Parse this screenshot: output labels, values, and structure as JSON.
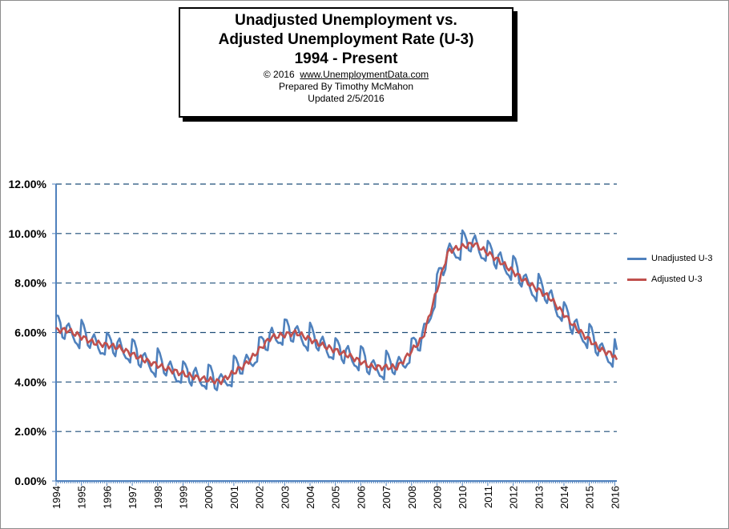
{
  "title_box": {
    "line1": "Unadjusted Unemployment vs.",
    "line2": "Adjusted Unemployment Rate (U-3)",
    "line3": "1994 - Present",
    "copyright_prefix": "© 2016",
    "copyright_link": "www.UnemploymentData.com",
    "prepared_by": "Prepared  By Timothy McMahon",
    "updated": "Updated  2/5/2016"
  },
  "chart_data": {
    "type": "line",
    "title": "Unadjusted Unemployment vs. Adjusted Unemployment Rate (U-3) 1994 - Present",
    "xlabel": "",
    "ylabel": "",
    "ylim": [
      0,
      12
    ],
    "y_ticks": [
      "0.00%",
      "2.00%",
      "4.00%",
      "6.00%",
      "8.00%",
      "10.00%",
      "12.00%"
    ],
    "x_ticks": [
      "1994",
      "1995",
      "1996",
      "1997",
      "1998",
      "1999",
      "2000",
      "2001",
      "2002",
      "2003",
      "2004",
      "2005",
      "2006",
      "2007",
      "2008",
      "2009",
      "2010",
      "2011",
      "2012",
      "2013",
      "2014",
      "2015",
      "2016"
    ],
    "grid": "horizontal dashed",
    "legend_position": "right",
    "x_start": 1994,
    "x_end": 2016.083,
    "series": [
      {
        "name": "Unadjusted U-3",
        "color": "#4f81bd",
        "annual_avg": [
          6.1,
          5.6,
          5.4,
          4.9,
          4.5,
          4.2,
          4.0,
          4.7,
          5.8,
          6.0,
          5.5,
          5.1,
          4.6,
          4.6,
          5.8,
          9.3,
          9.6,
          8.9,
          8.1,
          7.4,
          6.2,
          5.3,
          4.9
        ],
        "seasonal_offsets": [
          0.7,
          0.6,
          0.3,
          -0.3,
          -0.4,
          0.2,
          0.4,
          0.1,
          -0.2,
          -0.4,
          -0.4,
          -0.5
        ],
        "last_value": 5.3
      },
      {
        "name": "Adjusted U-3",
        "color": "#c0504d",
        "annual_avg": [
          6.1,
          5.6,
          5.4,
          4.9,
          4.5,
          4.2,
          4.0,
          4.7,
          5.8,
          6.0,
          5.5,
          5.1,
          4.6,
          4.6,
          5.8,
          9.3,
          9.6,
          8.9,
          8.1,
          7.4,
          6.2,
          5.3,
          4.9
        ],
        "last_value": 4.9
      }
    ]
  }
}
